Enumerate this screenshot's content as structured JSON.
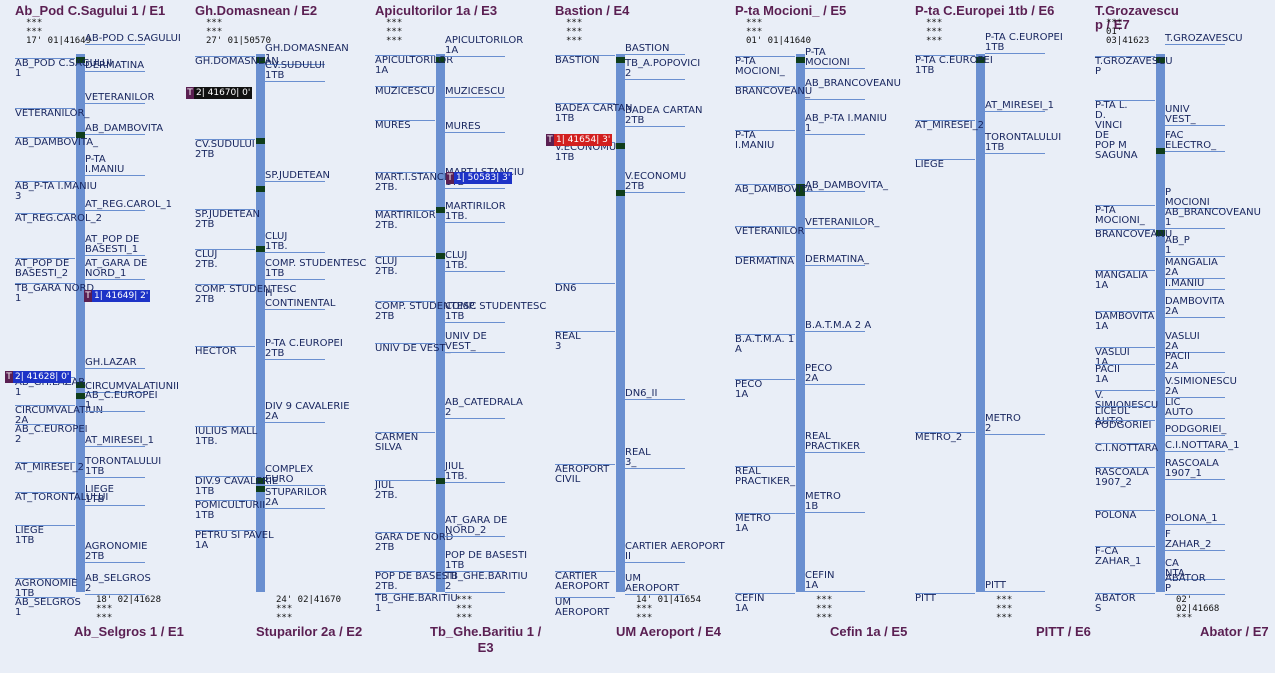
{
  "colors": {
    "bar": "#6a8fd0",
    "station": "#0f3d1a",
    "header": "#5a1f52",
    "text": "#17255e",
    "badge_black": "#111111",
    "badge_blue": "#1d33c7",
    "badge_red": "#d21f1f",
    "badge_prefix": "#5a1f52"
  },
  "panels": [
    {
      "header": "Ab_Pod C.Sagului 1 / E1",
      "footer": "Ab_Selgros 1 / E1",
      "meta_top": [
        "***",
        "***",
        "17' 01|41649"
      ],
      "meta_bottom": [
        "18' 02|41628",
        "***",
        "***"
      ],
      "left_stops": [
        "AB_POD C.SAGULUI\n1",
        "VETERANILOR_",
        "AB_DAMBOVITA_",
        "AB_P-TA I.MANIU\n3",
        "AT_REG.CAROL_2",
        "AT_POP DE\nBASESTI_2",
        "TB_GARA NORD\n1",
        "AB_GH.LAZAR\n1",
        "CIRCUMVALATIUN\n2A",
        "AB_C.EUROPEI\n2",
        "AT_MIRESEI_2",
        "AT_TORONTALULUI",
        "LIEGE\n1TB",
        "AGRONOMIE\n1TB",
        "AB_SELGROS\n1"
      ],
      "right_stops": [
        "AB-POD C.SAGULUI",
        "DERMATINA",
        "VETERANILOR",
        "AB_DAMBOVITA",
        "P-TA\nI.MANIU",
        "AT_REG.CAROL_1",
        "AT_POP DE\nBASESTI_1",
        "AT_GARA DE\nNORD_1",
        "GH.LAZAR",
        "CIRCUMVALATIUNII",
        "AB_C.EUROPEI\n1",
        "AT_MIRESEI_1",
        "TORONTALULUI\n1TB",
        "LIEGE\n1TB",
        "AGRONOMIE\n2TB",
        "AB_SELGROS\n2"
      ],
      "badges": [
        {
          "label": "T",
          "text": "1| 41649| 2'",
          "color": "#1d33c7"
        },
        {
          "label": "T",
          "text": "2| 41628| 0'",
          "color": "#1d33c7"
        }
      ]
    },
    {
      "header": "Gh.Domasnean / E2",
      "footer": "Stuparilor 2a / E2",
      "meta_top": [
        "***",
        "***",
        "27' 01|50570"
      ],
      "meta_bottom": [
        "24' 02|41670",
        "***",
        "***"
      ],
      "left_stops": [
        "GH.DOMASNEAN",
        "CV.SUDULUI\n2TB",
        "SP.JUDETEAN\n2TB",
        "CLUJ\n2TB.",
        "COMP. STUDENTESC\n2TB",
        "HECTOR",
        "IULIUS MALL\n1TB.",
        "DIV.9 CAVALERIE\n1TB",
        "POMICULTURII\n1TB",
        "PETRU SI PAVEL\n1A"
      ],
      "right_stops": [
        "GH.DOMASNEAN\n1",
        "CV.SUDULUI\n1TB",
        "SP.JUDETEAN",
        "CLUJ\n1TB.",
        "COMP. STUDENTESC\n1TB",
        "H\nCONTINENTAL",
        "P-TA C.EUROPEI\n2TB",
        "DIV 9 CAVALERIE\n2A",
        "COMPLEX\nEURO",
        "STUPARILOR\n2A"
      ],
      "badges": [
        {
          "label": "T",
          "text": "2| 41670| 0'",
          "color": "#111111"
        }
      ]
    },
    {
      "header": "Apicultorilor 1a / E3",
      "footer": "Tb_Ghe.Baritiu 1 /\nE3",
      "meta_top": [
        "***",
        "***",
        "***"
      ],
      "meta_bottom": [
        "***",
        "***",
        "***"
      ],
      "left_stops": [
        "APICULTORILOR\n1A",
        "MUZICESCU",
        "MURES",
        "MART.I.STANCIU\n2TB.",
        "MARTIRILOR\n2TB.",
        "CLUJ\n2TB.",
        "COMP. STUDENTESC\n2TB",
        "UNIV DE VEST_",
        "CARMEN\nSILVA",
        "JIUL\n2TB.",
        "GARA DE NORD\n2TB",
        "POP DE BASESTI\n2TB.",
        "TB_GHE.BARITIU\n1"
      ],
      "right_stops": [
        "APICULTORILOR\n1A",
        "MUZICESCU",
        "MURES",
        "MART.I.STANCIU\n1TB",
        "MARTIRILOR\n1TB.",
        "CLUJ\n1TB.",
        "COMP. STUDENTESC\n1TB",
        "UNIV DE\nVEST_",
        "AB_CATEDRALA\n2",
        "JIUL\n1TB.",
        "AT_GARA DE\nNORD_2",
        "POP DE BASESTI\n1TB",
        "TB_GHE.BARITIU\n2"
      ],
      "badges": [
        {
          "label": "T",
          "text": "1| 50583| 3'",
          "color": "#1d33c7"
        }
      ]
    },
    {
      "header": "Bastion / E4",
      "footer": "UM Aeroport / E4",
      "meta_top": [
        "***",
        "***",
        "***"
      ],
      "meta_bottom": [
        "14' 01|41654",
        "***",
        "***"
      ],
      "left_stops": [
        "BASTION",
        "BADEA CARTAN\n1TB",
        "V.ECONOMU\n1TB",
        "DN6",
        "REAL\n3",
        "AEROPORT\nCIVIL",
        "CARTIER\nAEROPORT",
        "UM\nAEROPORT"
      ],
      "right_stops": [
        "BASTION",
        "TB_A.POPOVICI\n2",
        "BADEA CARTAN\n2TB",
        "V.ECONOMU\n2TB",
        "DN6_II",
        "REAL\n3_",
        "CARTIER AEROPORT\nII",
        "UM\nAEROPORT"
      ],
      "badges": [
        {
          "label": "T",
          "text": "1| 41654| 3'",
          "color": "#d21f1f"
        }
      ]
    },
    {
      "header": "P-ta Mocioni_ / E5",
      "footer": "Cefin 1a / E5",
      "meta_top": [
        "***",
        "***",
        "01' 01|41640"
      ],
      "meta_bottom": [
        "***",
        "***",
        "***"
      ],
      "left_stops": [
        "P-TA\nMOCIONI_",
        "BRANCOVEANU",
        "P-TA\nI.MANIU",
        "AB_DAMBOVITA",
        "VETERANILOR",
        "DERMATINA",
        "B.A.T.M.A. 1\nA",
        "PECO\n1A",
        "REAL\nPRACTIKER_",
        "METRO\n1A",
        "CEFIN\n1A"
      ],
      "right_stops": [
        "P-TA\nMOCIONI",
        "AB_BRANCOVEANU\n_",
        "AB_P-TA I.MANIU\n1",
        "AB_DAMBOVITA_",
        "VETERANILOR_",
        "DERMATINA_",
        "B.A.T.M.A 2 A",
        "PECO\n2A",
        "REAL\nPRACTIKER",
        "METRO\n1B",
        "CEFIN\n1A"
      ],
      "badges": []
    },
    {
      "header": "P-ta C.Europei 1tb / E6",
      "footer": "PITT / E6",
      "meta_top": [
        "***",
        "***",
        "***"
      ],
      "meta_bottom": [
        "***",
        "***",
        "***"
      ],
      "left_stops": [
        "P-TA C.EUROPEI\n1TB",
        "AT_MIRESEI_2",
        "LIEGE",
        "METRO_2",
        "PITT"
      ],
      "right_stops": [
        "P-TA C.EUROPEI\n1TB",
        "AT_MIRESEI_1",
        "TORONTALULUI\n1TB",
        "METRO\n2",
        "PITT"
      ],
      "badges": []
    },
    {
      "header": "T.Grozavescu\np / E7",
      "footer": "Abator / E7",
      "meta_top": [
        "***",
        "01'",
        "03|41623"
      ],
      "meta_bottom": [
        "02'",
        "02|41668",
        "***"
      ],
      "left_stops": [
        "T.GROZAVESCU\nP",
        "P-TA L.\nD.\nVINCI\nDE\nPOP M\nSAGUNA",
        "P-TA\nMOCIONI_",
        "BRANCOVEANU",
        "MANGALIA\n1A",
        "DAMBOVITA\n1A",
        "VASLUI\n1A",
        "PACII\n1A",
        "V.\nSIMIONESCU",
        "LICEUL\nAUTO",
        "PODGORIEI",
        "C.I.NOTTARA",
        "RASCOALA\n1907_2",
        "POLONA",
        "F-CA\nZAHAR_1",
        "ABATOR\nS"
      ],
      "right_stops": [
        "T.GROZAVESCU",
        "UNIV\nVEST_",
        "FAC\nELECTRO_",
        "P\nMOCIONI",
        "AB_BRANCOVEANU\n1",
        "AB_P\n1",
        "MANGALIA\n2A",
        "I.MANIU",
        "DAMBOVITA\n2A",
        "VASLUI\n2A",
        "PACII\n2A",
        "V.SIMIONESCU\n2A",
        "LIC\nAUTO",
        "PODGORIEI_",
        "C.I.NOTTARA_1",
        "RASCOALA\n1907_1",
        "POLONA_1",
        "F\nZAHAR_2",
        "CA\nNTA",
        "ABATOR\nP"
      ],
      "badges": []
    }
  ]
}
